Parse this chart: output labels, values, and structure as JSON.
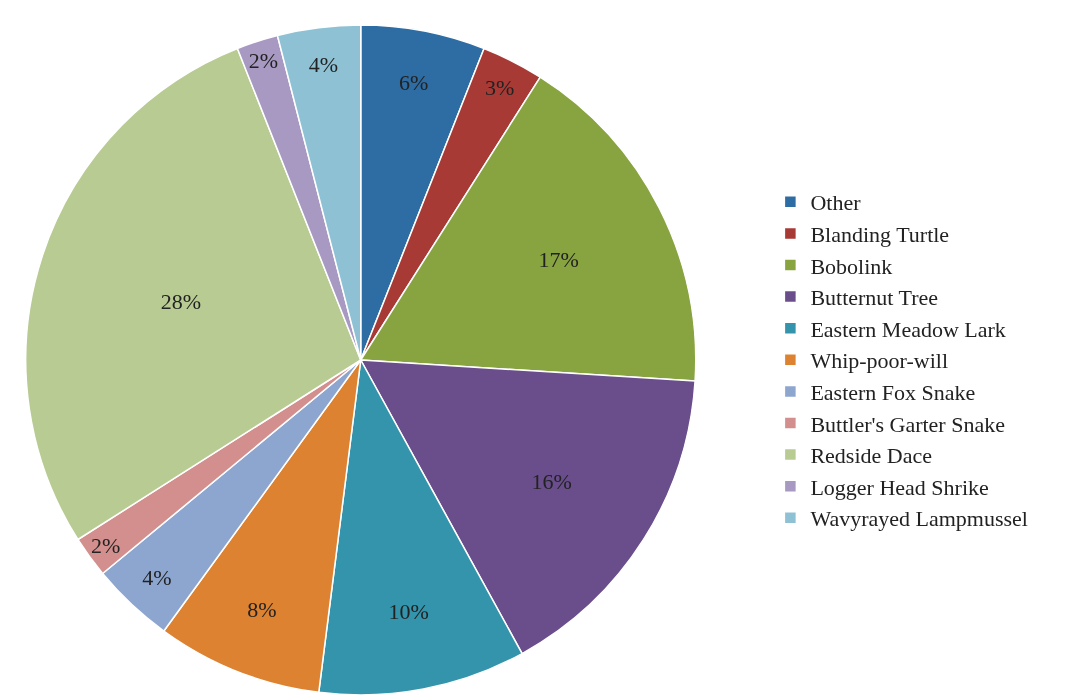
{
  "chart_data": {
    "type": "pie",
    "categories": [
      "Other",
      "Blanding Turtle",
      "Bobolink",
      "Butternut Tree",
      "Eastern Meadow Lark",
      "Whip-poor-will",
      "Eastern Fox Snake",
      "Buttler's Garter Snake",
      "Redside Dace",
      "Logger Head Shrike",
      "Wavyrayed Lampmussel"
    ],
    "values": [
      6,
      3,
      17,
      16,
      10,
      8,
      4,
      2,
      28,
      2,
      4
    ],
    "value_labels": [
      "6%",
      "3%",
      "17%",
      "16%",
      "10%",
      "8%",
      "4%",
      "2%",
      "28%",
      "2%",
      "4%"
    ],
    "colors": [
      "#2e6ca4",
      "#a83a36",
      "#88a440",
      "#6a4e8c",
      "#3394ab",
      "#dd8230",
      "#8da6cf",
      "#d38f8d",
      "#b7cb93",
      "#a799c2",
      "#8ec1d4"
    ],
    "legend": "right"
  }
}
